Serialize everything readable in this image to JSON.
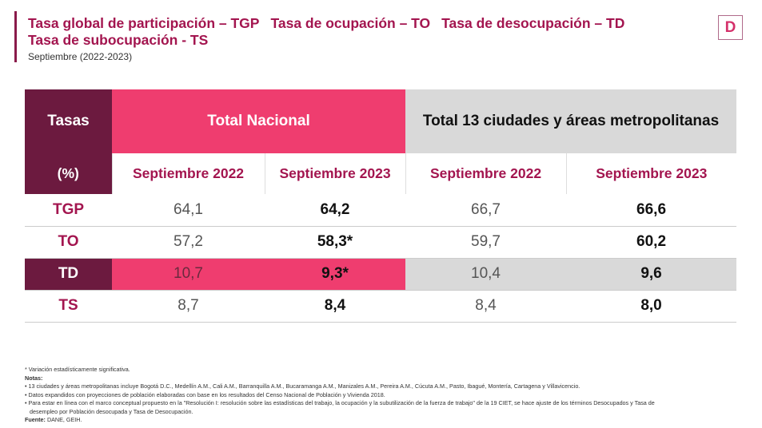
{
  "header": {
    "title_parts": [
      "Tasa global de participación – TGP",
      "Tasa de ocupación – TO",
      "Tasa de desocupación – TD",
      "Tasa de subocupación - TS"
    ],
    "subtitle": "Septiembre (2022-2023)",
    "logo_letter": "D"
  },
  "colors": {
    "dark": "#6c1a3f",
    "pink": "#ef3d6f",
    "gray": "#d9d9d9",
    "title": "#a3154f"
  },
  "table": {
    "corner_top": "Tasas",
    "corner_bottom": "(%)",
    "group1": "Total Nacional",
    "group2": "Total 13 ciudades y áreas metropolitanas",
    "periods": [
      "Septiembre 2022",
      "Septiembre 2023",
      "Septiembre 2022",
      "Septiembre 2023"
    ],
    "rows": [
      {
        "label": "TGP",
        "values": [
          "64,1",
          "64,2",
          "66,7",
          "66,6"
        ]
      },
      {
        "label": "TO",
        "values": [
          "57,2",
          "58,3*",
          "59,7",
          "60,2"
        ]
      },
      {
        "label": "TD",
        "values": [
          "10,7",
          "9,3*",
          "10,4",
          "9,6"
        ]
      },
      {
        "label": "TS",
        "values": [
          "8,7",
          "8,4",
          "8,4",
          "8,0"
        ]
      }
    ]
  },
  "notes": {
    "asterisk": "* Variación estadísticamente significativa.",
    "notes_label": "Notas:",
    "items": [
      "• 13 ciudades y áreas metropolitanas incluye Bogotá D.C., Medellín A.M., Cali A.M., Barranquilla A.M., Bucaramanga A.M., Manizales A.M., Pereira A.M., Cúcuta A.M., Pasto, Ibagué, Montería, Cartagena y Villavicencio.",
      "• Datos expandidos con proyecciones de población elaboradas con base en los resultados del Censo Nacional de Población y Vivienda 2018.",
      "• Para estar en línea con el marco conceptual propuesto en la \"Resolución I: resolución sobre las estadísticas del trabajo, la ocupación y la subutilización de la fuerza de trabajo\" de la 19 CIET, se hace ajuste de los términos Desocupados y Tasa de",
      "desempleo por Población desocupada y Tasa de Desocupación."
    ],
    "source_label": "Fuente:",
    "source": " DANE, GEIH."
  }
}
